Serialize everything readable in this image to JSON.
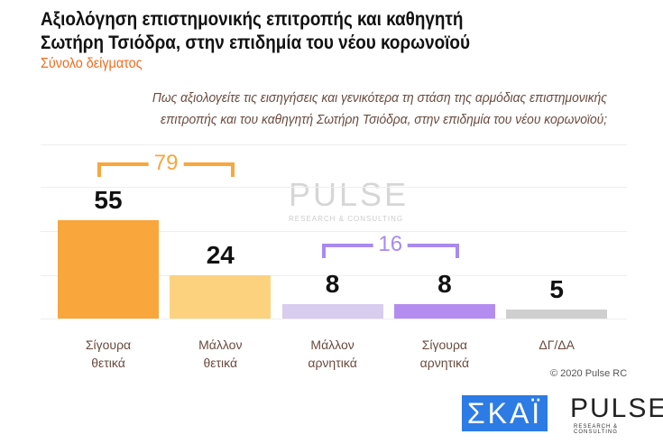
{
  "title_line1": "Αξιολόγηση επιστημονικής επιτροπής και καθηγητή",
  "title_line2": "Σωτήρη Τσιόδρα, στην επιδημία του νέου κορωνοϊού",
  "subtitle": "Σύνολο δείγματος",
  "question_line1": "Πως αξιολογείτε τις εισηγήσεις και γενικότερα τη στάση της αρμόδιας επιστημονικής",
  "question_line2": "επιτροπής και του καθηγητή Σωτήρη Τσιόδρα, στην επιδημία του νέου κορωνοϊού;",
  "chart_data": {
    "type": "bar",
    "categories": [
      "Σίγουρα θετικά",
      "Μάλλον θετικά",
      "Μάλλον αρνητικά",
      "Σίγουρα αρνητικά",
      "ΔΓ/ΔΑ"
    ],
    "cat_lines": [
      [
        "Σίγουρα",
        "θετικά"
      ],
      [
        "Μάλλον",
        "θετικά"
      ],
      [
        "Μάλλον",
        "αρνητικά"
      ],
      [
        "Σίγουρα",
        "αρνητικά"
      ],
      [
        "ΔΓ/ΔΑ",
        ""
      ]
    ],
    "values": [
      55,
      24,
      8,
      8,
      5
    ],
    "colors": [
      "#f9a63c",
      "#fdd27f",
      "#d8ccef",
      "#b48cf0",
      "#cfcfcf"
    ],
    "ylim": [
      0,
      60
    ],
    "annotations": [
      {
        "label": "79",
        "groups": [
          0,
          1
        ],
        "color": "#f9a63c"
      },
      {
        "label": "16",
        "groups": [
          2,
          3
        ],
        "color": "#a98af0"
      }
    ]
  },
  "watermark": "PULSE",
  "watermark_sub": "RESEARCH & CONSULTING",
  "copyright": "© 2020 Pulse RC",
  "logo_skai": "ΣΚΑΪ",
  "logo_pulse": "PULSE",
  "logo_pulse_sub": "RESEARCH & CONSULTING"
}
